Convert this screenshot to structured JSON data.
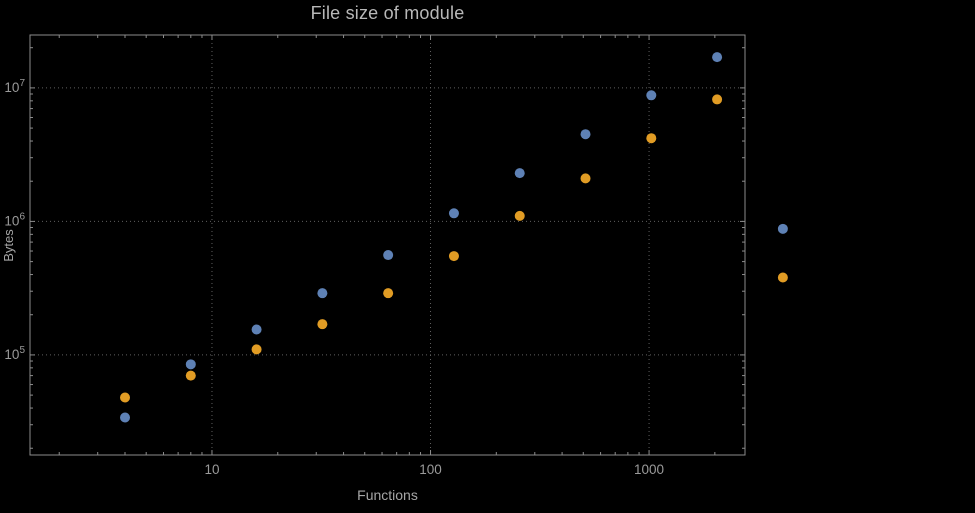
{
  "chart_data": {
    "type": "scatter",
    "title": "File size of module",
    "xlabel": "Functions",
    "ylabel": "Bytes",
    "x_scale": "log",
    "y_scale": "log",
    "grid": true,
    "legend": "none",
    "xlim": [
      1.47,
      2748
    ],
    "ylim": [
      17800,
      24900000
    ],
    "x": [
      4,
      8,
      16,
      32,
      64,
      128,
      256,
      512,
      1024,
      2048,
      4096
    ],
    "series": [
      {
        "color": "#5E81B5",
        "values": [
          34000,
          85000,
          155000,
          290000,
          560000,
          1150000,
          2300000,
          4500000,
          8800000,
          17000000,
          880000
        ]
      },
      {
        "color": "#E19C24",
        "values": [
          48000,
          70000,
          110000,
          170000,
          290000,
          550000,
          1100000,
          2100000,
          4200000,
          8200000,
          380000
        ]
      }
    ],
    "x_ticks": [
      {
        "value": 10,
        "label": "10"
      },
      {
        "value": 100,
        "label": "100"
      },
      {
        "value": 1000,
        "label": "1000"
      }
    ],
    "y_ticks": [
      {
        "value": 100000,
        "base": "10",
        "exp": "5"
      },
      {
        "value": 1000000,
        "base": "10",
        "exp": "6"
      },
      {
        "value": 10000000,
        "base": "10",
        "exp": "7"
      }
    ],
    "colors": {
      "background": "#000000",
      "frame": "#8c8c8c",
      "grid": "#5f5f5f",
      "text": "#9a9a9a",
      "title": "#b8b8b8",
      "axis_label": "#a6a6a6"
    }
  }
}
